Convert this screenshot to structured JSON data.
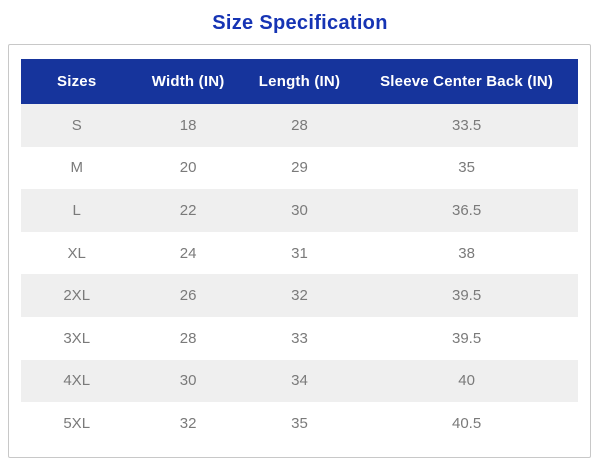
{
  "chart_data": {
    "type": "table",
    "title": "Size Specification",
    "columns": [
      "Sizes",
      "Width (IN)",
      "Length (IN)",
      "Sleeve Center Back (IN)"
    ],
    "rows": [
      [
        "S",
        "18",
        "28",
        "33.5"
      ],
      [
        "M",
        "20",
        "29",
        "35"
      ],
      [
        "L",
        "22",
        "30",
        "36.5"
      ],
      [
        "XL",
        "24",
        "31",
        "38"
      ],
      [
        "2XL",
        "26",
        "32",
        "39.5"
      ],
      [
        "3XL",
        "28",
        "33",
        "39.5"
      ],
      [
        "4XL",
        "30",
        "34",
        "40"
      ],
      [
        "5XL",
        "32",
        "35",
        "40.5"
      ]
    ],
    "layout": {
      "header_row": true,
      "alternating_rows": true,
      "text_align": "center"
    }
  },
  "colors": {
    "title_text": "#1634b4",
    "header_bg": "#16349c",
    "header_text": "#ffffff",
    "row_alt_bg": "#efefef",
    "row_bg": "#ffffff",
    "cell_text": "#7a7a7a",
    "container_border": "#c8c8c8",
    "page_bg": "#ffffff"
  }
}
